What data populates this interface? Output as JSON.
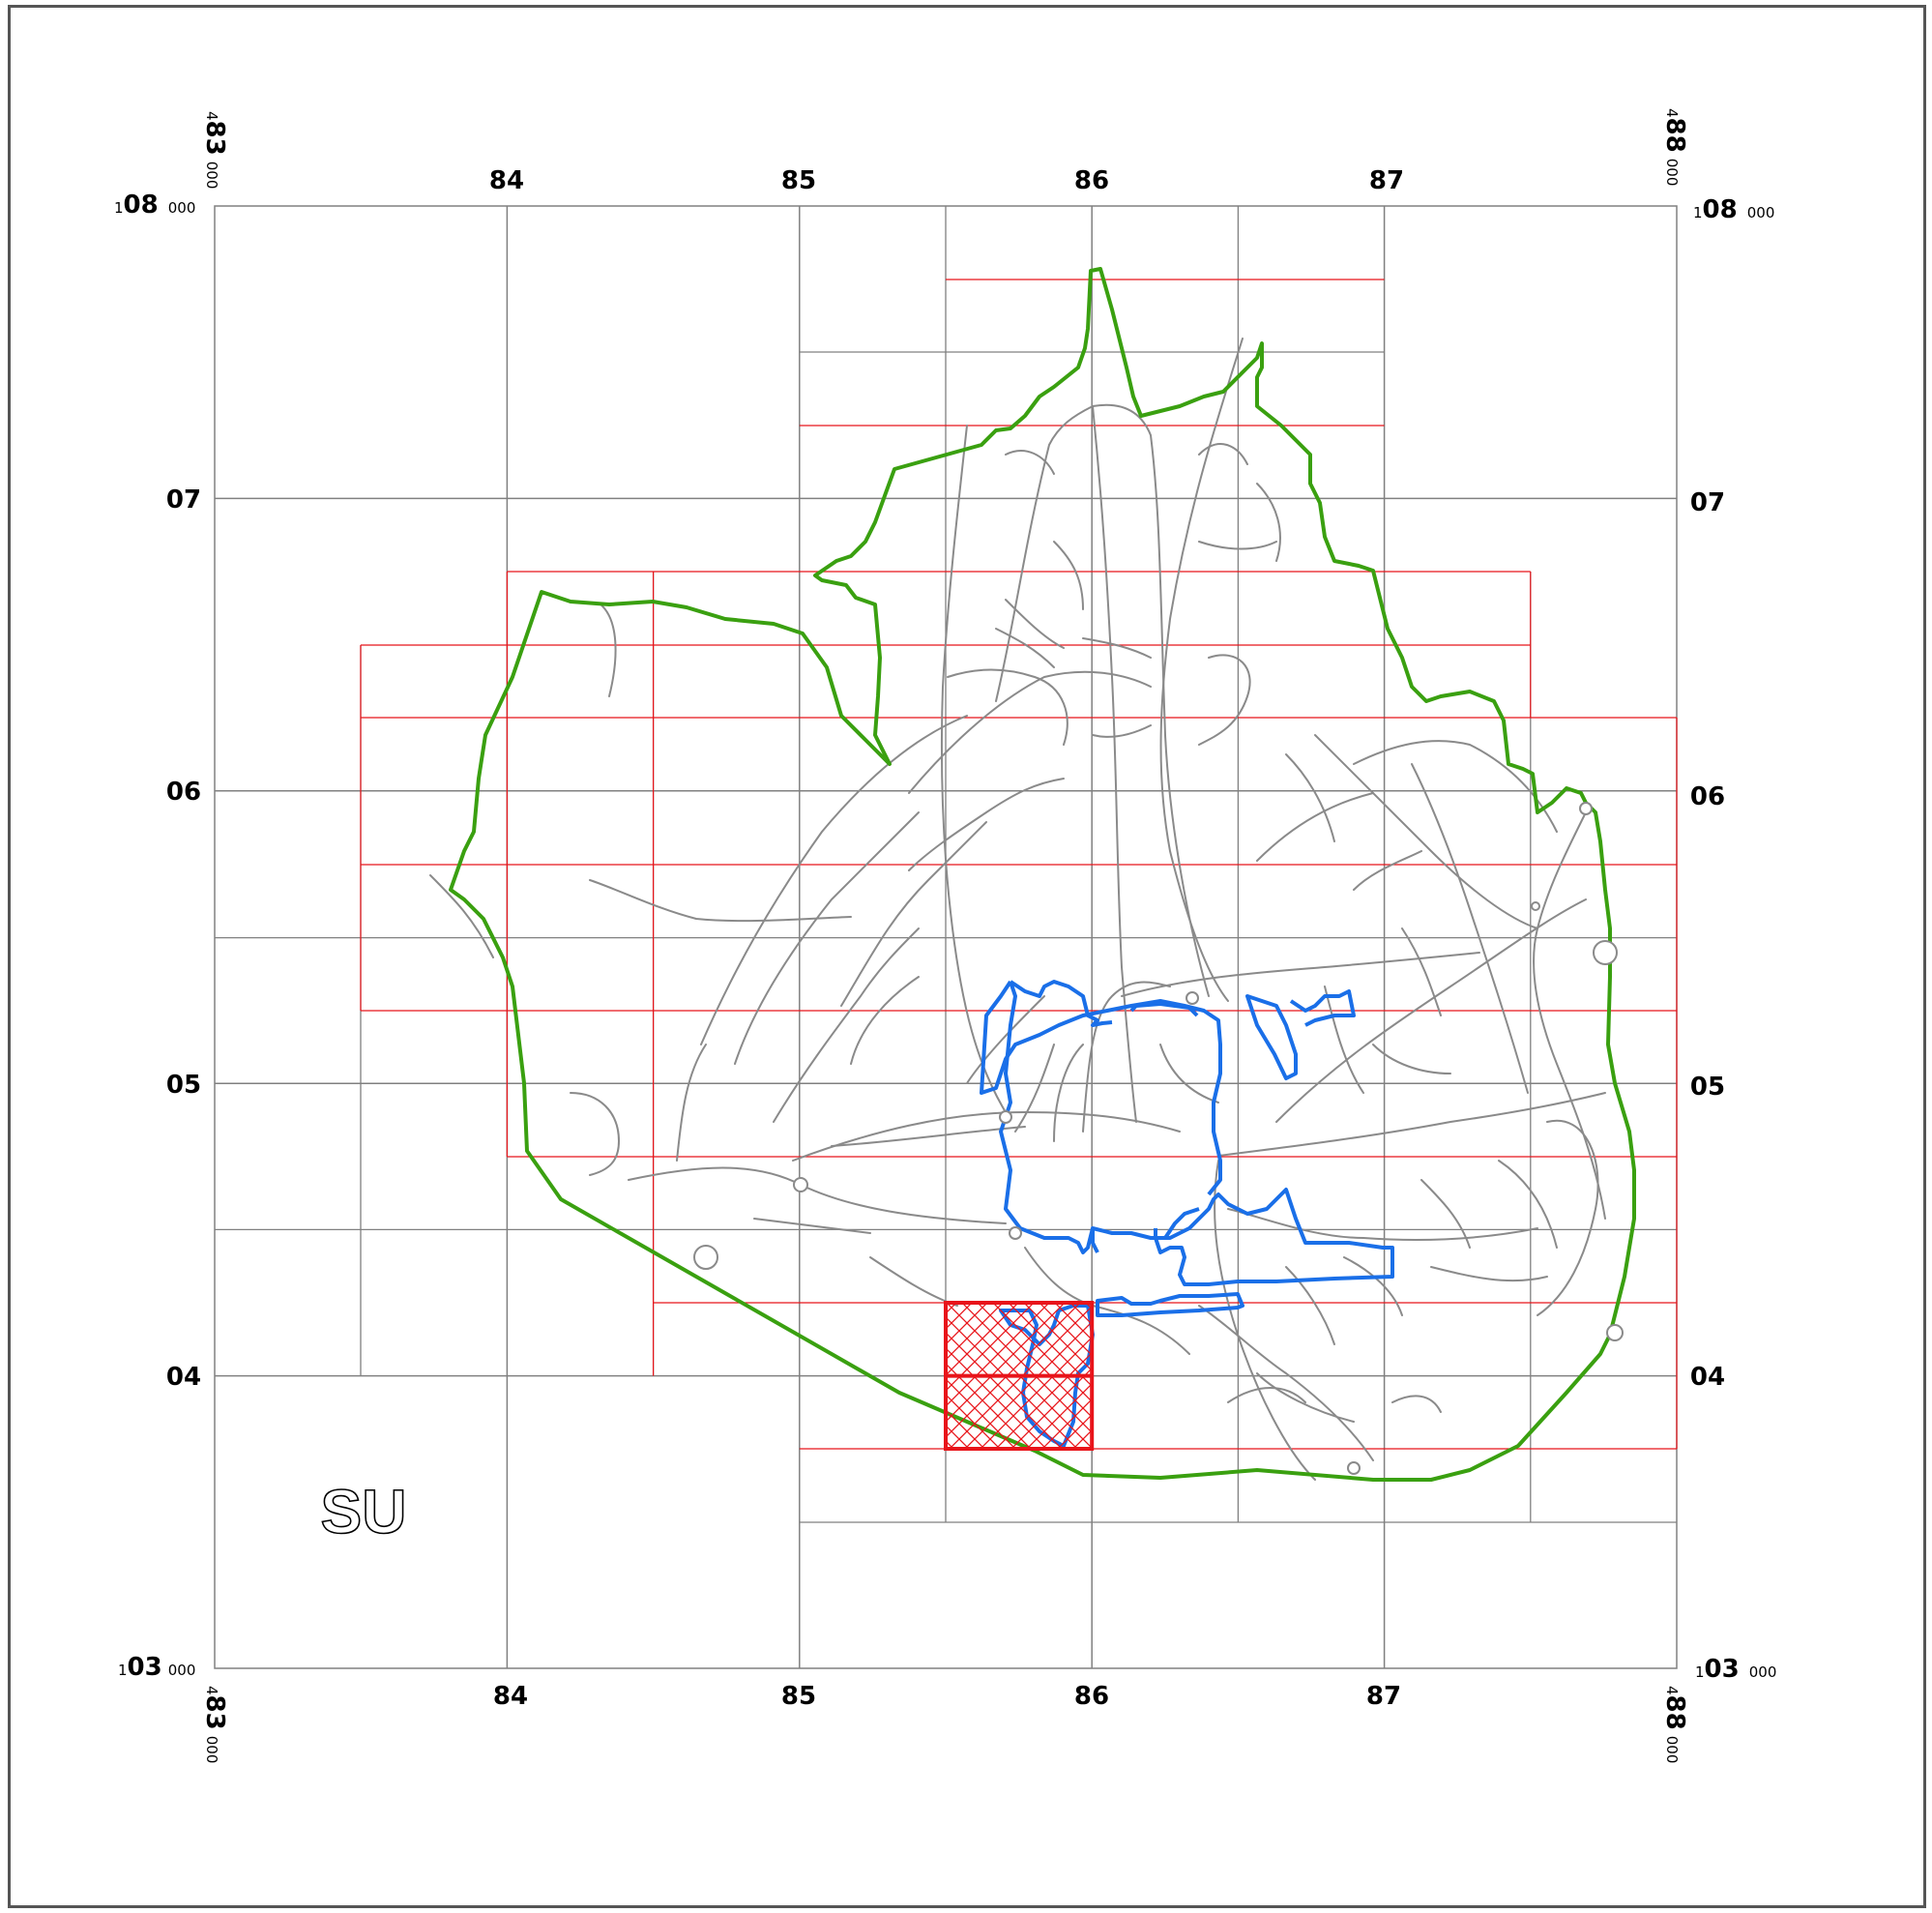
{
  "map": {
    "easting_labels": [
      "84",
      "85",
      "86",
      "87"
    ],
    "northing_labels": [
      "07",
      "06",
      "05",
      "04"
    ],
    "corner": {
      "west_prefix": "4",
      "west_main": "83",
      "east_prefix": "4",
      "east_main": "88",
      "north_prefix": "1",
      "north_main": "08",
      "south_prefix": "1",
      "south_main": "03",
      "zeros": "000"
    },
    "grid_square": "SU",
    "colors": {
      "grid": "#808080",
      "tile_grid": "#e8141a",
      "boundary_outer": "#3aa010",
      "boundary_inner": "#1a6fe8",
      "roads": "#8a8a8a",
      "selected_tile": "#e8141a"
    }
  }
}
